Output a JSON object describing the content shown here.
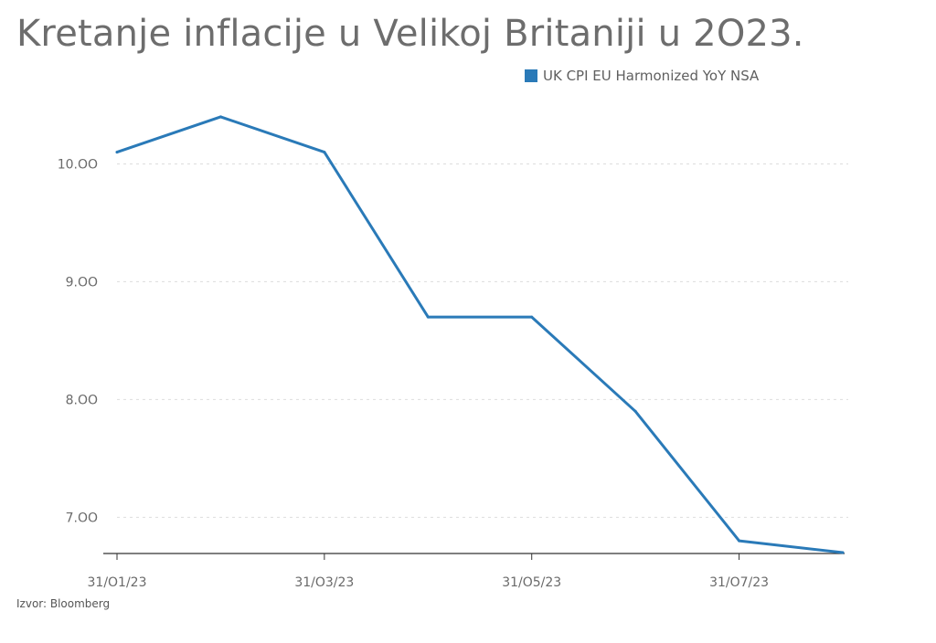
{
  "title": "Kretanje inflacije u Velikoj Britaniji u 2O23.",
  "source": "Izvor: Bloomberg",
  "colors": {
    "series": "#2a7ab8",
    "grid": "#dddddd",
    "axis": "#333333"
  },
  "chart_data": {
    "type": "line",
    "title": "Kretanje inflacije u Velikoj Britaniji u 2O23.",
    "xlabel": "",
    "ylabel": "",
    "x": [
      "2023-01-31",
      "2023-02-28",
      "2023-03-31",
      "2023-04-30",
      "2023-05-31",
      "2023-06-30",
      "2023-07-31",
      "2023-08-31"
    ],
    "series": [
      {
        "name": "UK CPI EU Harmonized YoY NSA",
        "values": [
          10.1,
          10.4,
          10.1,
          8.7,
          8.7,
          7.9,
          6.8,
          6.7
        ]
      }
    ],
    "yticks": [
      7,
      8,
      9,
      10
    ],
    "ytick_labels": [
      "7.OO",
      "8.OO",
      "9.OO",
      "10.OO"
    ],
    "xtick_labels": [
      "31/O1/23",
      "31/O3/23",
      "31/O5/23",
      "31/O7/23"
    ],
    "xtick_index": [
      0,
      2,
      4,
      6
    ],
    "ylim": [
      6.7,
      10.5
    ],
    "grid": true,
    "legend": "top-right"
  }
}
